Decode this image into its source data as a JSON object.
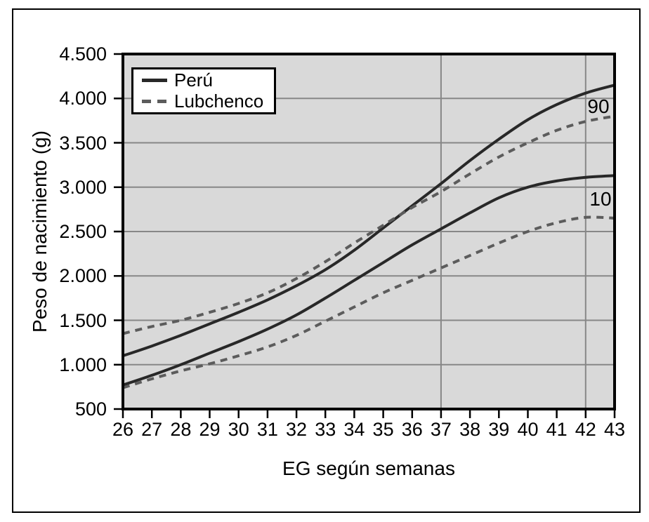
{
  "chart_data": {
    "type": "line",
    "title": "",
    "xlabel": "EG según semanas",
    "ylabel": "Peso de nacimiento (g)",
    "x": [
      26,
      27,
      28,
      29,
      30,
      31,
      32,
      33,
      34,
      35,
      36,
      37,
      38,
      39,
      40,
      41,
      42,
      43
    ],
    "xtick_labels": [
      "26",
      "27",
      "28",
      "29",
      "30",
      "31",
      "32",
      "33",
      "34",
      "35",
      "36",
      "37",
      "38",
      "39",
      "40",
      "41",
      "42",
      "43"
    ],
    "ytick_values": [
      500,
      1000,
      1500,
      2000,
      2500,
      3000,
      3500,
      4000,
      4500
    ],
    "ytick_labels": [
      "500",
      "1.000",
      "1.500",
      "2.000",
      "2.500",
      "3.000",
      "3.500",
      "4.000",
      "4.500"
    ],
    "xlim": [
      26,
      43
    ],
    "ylim": [
      500,
      4500
    ],
    "y_gridlines_at": [
      1000,
      1500,
      2000,
      2500,
      3000,
      3500,
      4000
    ],
    "x_gridlines_at": [
      37,
      42
    ],
    "grid_on": true,
    "legend_position": "top-left-inside",
    "series": [
      {
        "name": "Perú",
        "percentile": "90",
        "style": "solid",
        "color": "#282828",
        "values": [
          1100,
          1210,
          1330,
          1460,
          1590,
          1730,
          1890,
          2070,
          2290,
          2540,
          2790,
          3040,
          3300,
          3540,
          3760,
          3930,
          4060,
          4150
        ]
      },
      {
        "name": "Lubchenco",
        "percentile": "90",
        "style": "dashed",
        "color": "#5c5c5c",
        "values": [
          1350,
          1430,
          1500,
          1590,
          1690,
          1810,
          1970,
          2160,
          2370,
          2570,
          2770,
          2950,
          3150,
          3340,
          3500,
          3640,
          3740,
          3800
        ]
      },
      {
        "name": "Perú",
        "percentile": "10",
        "style": "solid",
        "color": "#282828",
        "values": [
          770,
          880,
          1000,
          1130,
          1260,
          1400,
          1560,
          1750,
          1950,
          2150,
          2350,
          2530,
          2710,
          2880,
          3000,
          3070,
          3110,
          3130
        ]
      },
      {
        "name": "Lubchenco",
        "percentile": "10",
        "style": "dashed",
        "color": "#5c5c5c",
        "values": [
          740,
          840,
          930,
          1010,
          1100,
          1200,
          1330,
          1490,
          1650,
          1810,
          1950,
          2090,
          2230,
          2370,
          2500,
          2600,
          2660,
          2650
        ]
      }
    ],
    "plot_bg": "#d9d9d9",
    "grid_color": "#878787",
    "frame_color": "#000000"
  },
  "legend": {
    "items": [
      {
        "label": "Perú",
        "style": "solid"
      },
      {
        "label": "Lubchenco",
        "style": "dashed"
      }
    ]
  },
  "annotations": {
    "p90": "90",
    "p10": "10"
  }
}
